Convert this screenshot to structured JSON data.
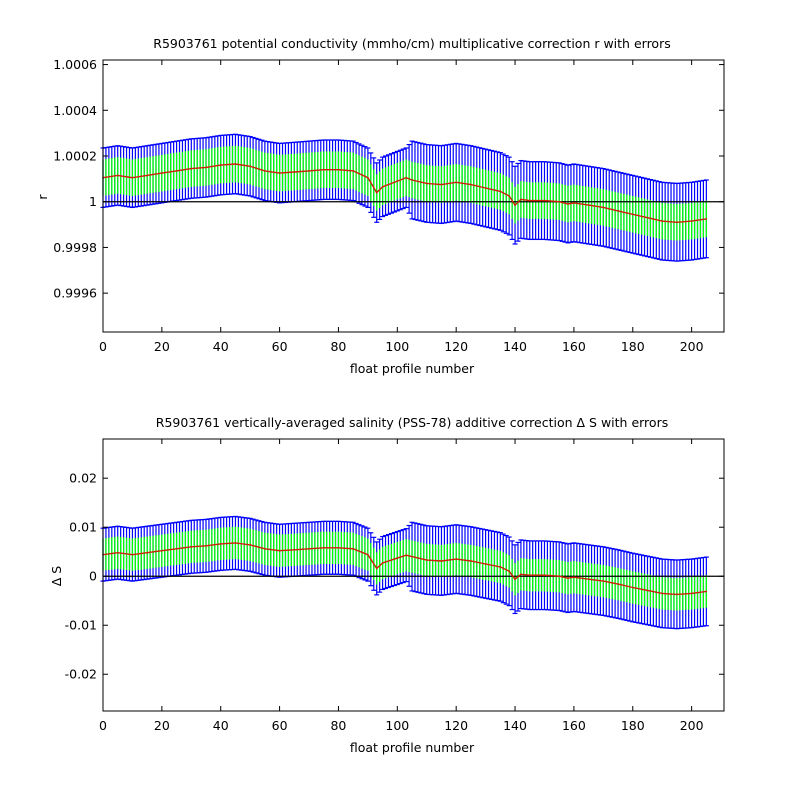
{
  "colors": {
    "outer_error": "#0000ff",
    "inner_error": "#00ff00",
    "correction": "#cc2200",
    "reference": "#000000",
    "axes": "#000000",
    "background": "#ffffff"
  },
  "chart_data": [
    {
      "type": "line",
      "title": "R5903761 potential conductivity (mmho/cm) multiplicative correction r with errors",
      "xlabel": "float profile number",
      "ylabel": "r",
      "xlim": [
        0,
        211
      ],
      "ylim": [
        0.99943,
        1.00062
      ],
      "x_ticks": [
        0,
        20,
        40,
        60,
        80,
        100,
        120,
        140,
        160,
        180,
        200
      ],
      "x_tick_labels": [
        "0",
        "20",
        "40",
        "60",
        "80",
        "100",
        "120",
        "140",
        "160",
        "180",
        "200"
      ],
      "y_ticks": [
        0.9996,
        0.9998,
        1.0,
        1.0002,
        1.0004,
        1.0006
      ],
      "y_tick_labels": [
        "0.9996",
        "0.9998",
        "1",
        "1.0002",
        "1.0004",
        "1.0006"
      ],
      "reference_line": 1.0,
      "grid": false,
      "x": [
        0,
        5,
        10,
        15,
        20,
        25,
        30,
        35,
        40,
        45,
        50,
        55,
        60,
        65,
        70,
        75,
        80,
        85,
        90,
        93,
        95,
        100,
        103,
        105,
        110,
        115,
        120,
        125,
        130,
        135,
        138,
        140,
        142,
        145,
        150,
        155,
        158,
        160,
        165,
        170,
        175,
        180,
        185,
        190,
        195,
        200,
        205
      ],
      "series": [
        {
          "values": [
            1.000105,
            1.000115,
            1.000105,
            1.000115,
            1.000125,
            1.000135,
            1.000145,
            1.00015,
            1.00016,
            1.000165,
            1.000155,
            1.000135,
            1.000125,
            1.00013,
            1.000135,
            1.00014,
            1.00014,
            1.000135,
            1.000105,
            1.00004,
            1.000065,
            1.00009,
            1.000105,
            1.000095,
            1.00008,
            1.000075,
            1.000085,
            1.000075,
            1.00006,
            1.000045,
            1.000025,
            0.999985,
            1.00001,
            1.000005,
            1.000005,
            1.0,
            0.99999,
            0.999995,
            0.999985,
            0.999975,
            0.99996,
            0.999945,
            0.99993,
            0.999915,
            0.99991,
            0.999915,
            0.999925
          ],
          "err_inner": [
            8e-05,
            8e-05,
            8e-05,
            8e-05,
            8e-05,
            8e-05,
            8e-05,
            8e-05,
            8e-05,
            8e-05,
            8e-05,
            8e-05,
            8e-05,
            8e-05,
            8e-05,
            8e-05,
            8e-05,
            8e-05,
            8e-05,
            8e-05,
            8e-05,
            8e-05,
            8e-05,
            8e-05,
            8e-05,
            8e-05,
            8e-05,
            8e-05,
            8e-05,
            8e-05,
            8e-05,
            8e-05,
            8e-05,
            8e-05,
            8e-05,
            8e-05,
            8e-05,
            8e-05,
            8e-05,
            8e-05,
            8e-05,
            8e-05,
            8e-05,
            8e-05,
            8e-05,
            8e-05,
            8e-05
          ],
          "err_outer": [
            0.00013,
            0.00013,
            0.00013,
            0.00013,
            0.00013,
            0.00013,
            0.00013,
            0.00013,
            0.00013,
            0.00013,
            0.00013,
            0.00013,
            0.00013,
            0.00013,
            0.00013,
            0.00013,
            0.00013,
            0.00013,
            0.00013,
            0.00013,
            0.00013,
            0.00013,
            0.00013,
            0.00017,
            0.00017,
            0.00017,
            0.00017,
            0.00017,
            0.00017,
            0.00017,
            0.00017,
            0.00017,
            0.00017,
            0.00017,
            0.00017,
            0.00017,
            0.00017,
            0.00017,
            0.00017,
            0.00017,
            0.00017,
            0.00017,
            0.00017,
            0.00017,
            0.00017,
            0.00017,
            0.00017
          ]
        }
      ]
    },
    {
      "type": "line",
      "title": "R5903761 vertically-averaged salinity (PSS-78) additive correction Δ S with errors",
      "xlabel": "float profile number",
      "ylabel": "Δ S",
      "xlim": [
        0,
        211
      ],
      "ylim": [
        -0.0275,
        0.028
      ],
      "x_ticks": [
        0,
        20,
        40,
        60,
        80,
        100,
        120,
        140,
        160,
        180,
        200
      ],
      "x_tick_labels": [
        "0",
        "20",
        "40",
        "60",
        "80",
        "100",
        "120",
        "140",
        "160",
        "180",
        "200"
      ],
      "y_ticks": [
        -0.02,
        -0.01,
        0,
        0.01,
        0.02
      ],
      "y_tick_labels": [
        "-0.02",
        "-0.01",
        "0",
        "0.01",
        "0.02"
      ],
      "reference_line": 0,
      "grid": false,
      "x": [
        0,
        5,
        10,
        15,
        20,
        25,
        30,
        35,
        40,
        45,
        50,
        55,
        60,
        65,
        70,
        75,
        80,
        85,
        90,
        93,
        95,
        100,
        103,
        105,
        110,
        115,
        120,
        125,
        130,
        135,
        138,
        140,
        142,
        145,
        150,
        155,
        158,
        160,
        165,
        170,
        175,
        180,
        185,
        190,
        195,
        200,
        205
      ],
      "series": [
        {
          "values": [
            0.0044,
            0.0048,
            0.0044,
            0.0048,
            0.0052,
            0.0056,
            0.006,
            0.0062,
            0.0066,
            0.0068,
            0.0064,
            0.0056,
            0.0052,
            0.0054,
            0.0056,
            0.0058,
            0.0058,
            0.0056,
            0.0044,
            0.0016,
            0.0027,
            0.0037,
            0.0043,
            0.004,
            0.0033,
            0.0031,
            0.0035,
            0.0031,
            0.0025,
            0.0019,
            0.001,
            -0.0006,
            0.0004,
            0.0002,
            0.0002,
            0.0,
            -0.0004,
            -0.0002,
            -0.0006,
            -0.001,
            -0.0016,
            -0.0023,
            -0.0029,
            -0.0035,
            -0.0037,
            -0.0035,
            -0.0031
          ],
          "err_inner": [
            0.0033,
            0.0033,
            0.0033,
            0.0033,
            0.0033,
            0.0033,
            0.0033,
            0.0033,
            0.0033,
            0.0033,
            0.0033,
            0.0033,
            0.0033,
            0.0033,
            0.0033,
            0.0033,
            0.0033,
            0.0033,
            0.0033,
            0.0033,
            0.0033,
            0.0033,
            0.0033,
            0.0033,
            0.0033,
            0.0033,
            0.0033,
            0.0033,
            0.0033,
            0.0033,
            0.0033,
            0.0033,
            0.0033,
            0.0033,
            0.0033,
            0.0033,
            0.0033,
            0.0033,
            0.0033,
            0.0033,
            0.0033,
            0.0033,
            0.0033,
            0.0033,
            0.0033,
            0.0033,
            0.0033
          ],
          "err_outer": [
            0.0054,
            0.0054,
            0.0054,
            0.0054,
            0.0054,
            0.0054,
            0.0054,
            0.0054,
            0.0054,
            0.0054,
            0.0054,
            0.0054,
            0.0054,
            0.0054,
            0.0054,
            0.0054,
            0.0054,
            0.0054,
            0.0054,
            0.0054,
            0.0054,
            0.0054,
            0.0054,
            0.007,
            0.007,
            0.007,
            0.007,
            0.007,
            0.007,
            0.007,
            0.007,
            0.007,
            0.007,
            0.007,
            0.007,
            0.007,
            0.007,
            0.007,
            0.007,
            0.007,
            0.007,
            0.007,
            0.007,
            0.007,
            0.007,
            0.007,
            0.007
          ]
        }
      ]
    }
  ]
}
